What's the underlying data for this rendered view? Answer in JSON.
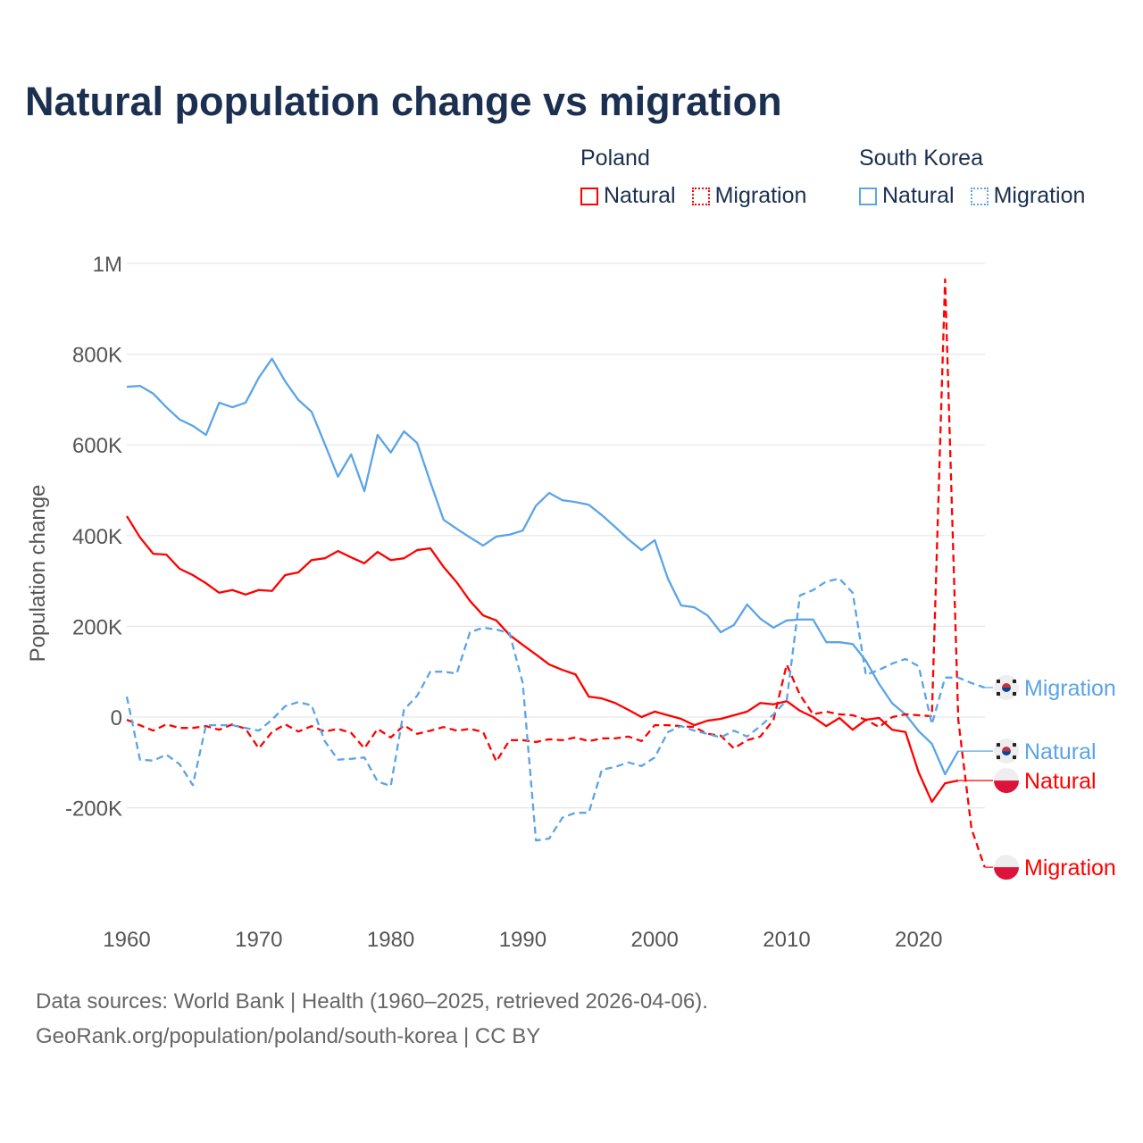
{
  "chart_data": {
    "type": "line",
    "title": "Natural population change vs migration",
    "ylabel": "Population change",
    "xlabel": "",
    "ylim": [
      -400000,
      1000000
    ],
    "xlim": [
      1960,
      2025
    ],
    "grid": true,
    "y_ticks": [
      {
        "v": 1000000,
        "label": "1M"
      },
      {
        "v": 800000,
        "label": "800K"
      },
      {
        "v": 600000,
        "label": "600K"
      },
      {
        "v": 400000,
        "label": "400K"
      },
      {
        "v": 200000,
        "label": "200K"
      },
      {
        "v": 0,
        "label": "0"
      },
      {
        "v": -200000,
        "label": "-200K"
      }
    ],
    "x_ticks": [
      {
        "v": 1960,
        "label": "1960"
      },
      {
        "v": 1970,
        "label": "1970"
      },
      {
        "v": 1980,
        "label": "1980"
      },
      {
        "v": 1990,
        "label": "1990"
      },
      {
        "v": 2000,
        "label": "2000"
      },
      {
        "v": 2010,
        "label": "2010"
      },
      {
        "v": 2020,
        "label": "2020"
      }
    ],
    "legend": {
      "placement": "top-right",
      "groups": [
        {
          "country": "Poland",
          "items": [
            "Natural",
            "Migration"
          ]
        },
        {
          "country": "South Korea",
          "items": [
            "Natural",
            "Migration"
          ]
        }
      ]
    },
    "series": [
      {
        "id": "kr-natural",
        "country": "South Korea",
        "name": "Natural",
        "color": "#5ba4e6",
        "dashed": false,
        "start_year": 1960,
        "values": [
          728,
          730,
          713,
          683,
          656,
          642,
          622,
          693,
          683,
          693,
          748,
          790,
          740,
          699,
          673,
          602,
          530,
          579,
          498,
          622,
          583,
          630,
          604,
          518,
          435,
          415,
          396,
          378,
          398,
          402,
          411,
          466,
          494,
          478,
          474,
          468,
          445,
          419,
          392,
          368,
          390,
          305,
          246,
          242,
          224,
          187,
          203,
          248,
          217,
          197,
          213,
          215,
          215,
          165,
          165,
          161,
          124,
          73,
          30,
          6,
          -31,
          -59,
          -126,
          -75
        ]
      },
      {
        "id": "pl-natural",
        "country": "Poland",
        "name": "Natural",
        "color": "#ff0000",
        "dashed": false,
        "start_year": 1960,
        "values": [
          443,
          396,
          360,
          358,
          327,
          313,
          295,
          274,
          280,
          270,
          280,
          278,
          313,
          319,
          346,
          350,
          366,
          352,
          339,
          364,
          346,
          350,
          368,
          372,
          331,
          297,
          256,
          224,
          213,
          181,
          159,
          138,
          116,
          104,
          94,
          45,
          41,
          31,
          16,
          0,
          12,
          4,
          -4,
          -18,
          -8,
          -4,
          4,
          12,
          31,
          28,
          35,
          14,
          0,
          -20,
          -2,
          -28,
          -6,
          -2,
          -28,
          -33,
          -122,
          -187,
          -146,
          -140
        ]
      },
      {
        "id": "pl-migration",
        "country": "Poland",
        "name": "Migration",
        "color": "#ff0000",
        "dashed": true,
        "start_year": 1960,
        "values": [
          -6,
          -18,
          -30,
          -16,
          -24,
          -24,
          -20,
          -28,
          -16,
          -26,
          -69,
          -33,
          -16,
          -32,
          -20,
          -32,
          -26,
          -35,
          -69,
          -26,
          -45,
          -18,
          -37,
          -30,
          -22,
          -30,
          -26,
          -33,
          -98,
          -51,
          -51,
          -55,
          -49,
          -51,
          -45,
          -53,
          -47,
          -47,
          -43,
          -53,
          -18,
          -18,
          -20,
          -22,
          -37,
          -41,
          -69,
          -51,
          -43,
          -6,
          116,
          49,
          6,
          12,
          6,
          4,
          -6,
          -22,
          0,
          6,
          4,
          2,
          965,
          -6,
          -246,
          -331
        ]
      },
      {
        "id": "kr-migration",
        "country": "South Korea",
        "name": "Migration",
        "color": "#5ba4e6",
        "dashed": true,
        "start_year": 1960,
        "values": [
          45,
          -94,
          -96,
          -83,
          -104,
          -150,
          -18,
          -18,
          -18,
          -24,
          -30,
          -6,
          24,
          33,
          26,
          -53,
          -94,
          -92,
          -89,
          -142,
          -152,
          16,
          47,
          100,
          100,
          96,
          187,
          197,
          193,
          185,
          75,
          -272,
          -268,
          -222,
          -211,
          -211,
          -116,
          -110,
          -100,
          -108,
          -89,
          -33,
          -20,
          -30,
          -37,
          -45,
          -30,
          -43,
          -20,
          6,
          37,
          268,
          280,
          299,
          305,
          274,
          93,
          104,
          118,
          128,
          112,
          -16,
          87,
          87,
          75,
          65
        ]
      }
    ],
    "value_unit": "thousands"
  },
  "footer": {
    "line1": "Data sources: World Bank | Health (1960–2025, retrieved 2026-04-06).",
    "line2": "GeoRank.org/population/poland/south-korea | CC BY"
  }
}
